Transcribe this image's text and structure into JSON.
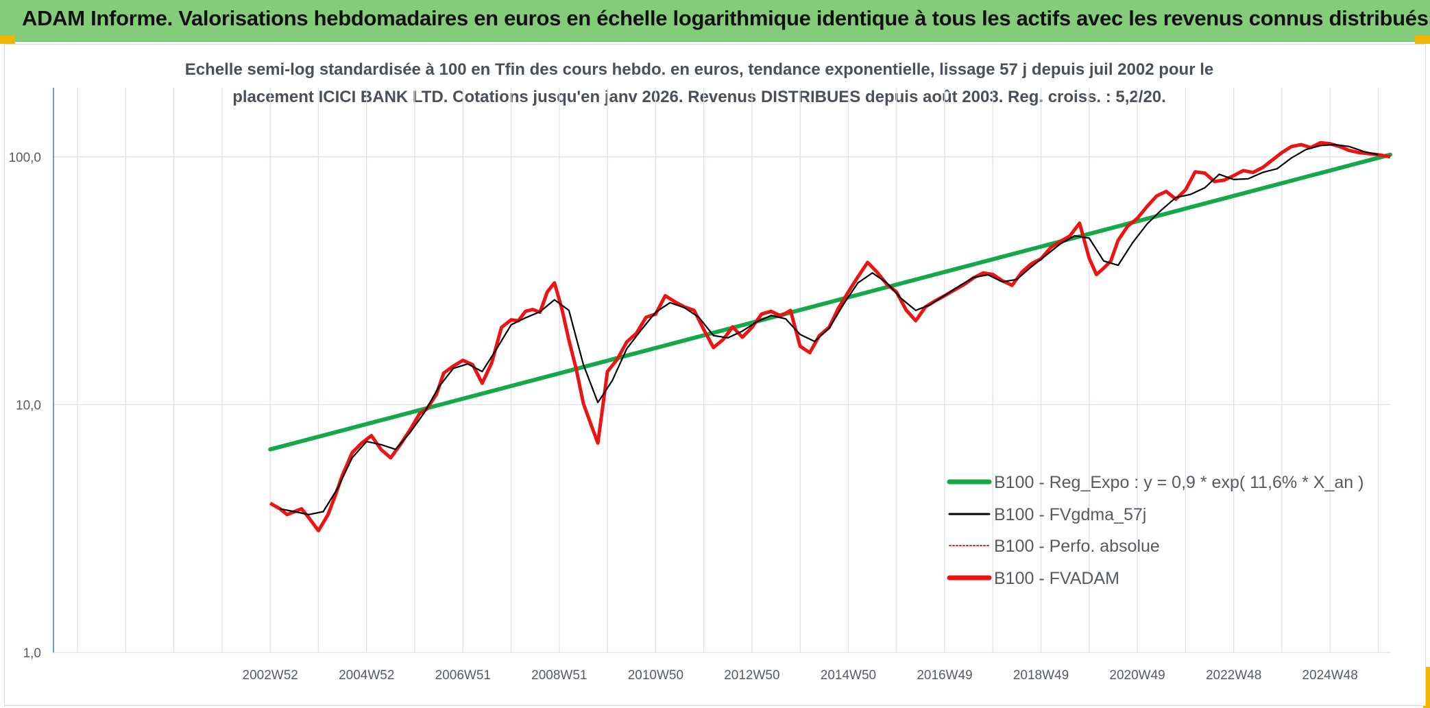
{
  "header": {
    "title": "ADAM Informe. Valorisations hebdomadaires en euros en échelle logarithmique identique à tous les actifs avec les revenus connus distribués"
  },
  "colors": {
    "header_bg": "#85cc7a",
    "regression": "#14a84a",
    "smoothed": "#000000",
    "perf_absolue": "#e02020",
    "fvadam": "#f01010",
    "grid": "#dde1e8",
    "corner_accent": "#f2b600"
  },
  "chart_data": {
    "type": "line",
    "title_line1": "Echelle semi-log standardisée à 100 en Tfin des cours hebdo. en euros, tendance exponentielle, lissage 57 j depuis juil 2002 pour le",
    "title_line2": "placement ICICI BANK LTD. Cotations jusqu'en janv 2026. Revenus DISTRIBUES depuis août 2003. Reg. croiss. : 5,2/20.",
    "y_scale": "log",
    "ylim": [
      1,
      190
    ],
    "xlim": [
      1998.5,
      2026.25
    ],
    "yticks": [
      {
        "value": 1,
        "label": "1,0"
      },
      {
        "value": 10,
        "label": "10,0"
      },
      {
        "value": 100,
        "label": "100,0"
      }
    ],
    "xticks": [
      {
        "value": 2003.0,
        "label": "2002W52"
      },
      {
        "value": 2005.0,
        "label": "2004W52"
      },
      {
        "value": 2007.0,
        "label": "2006W51"
      },
      {
        "value": 2009.0,
        "label": "2008W51"
      },
      {
        "value": 2011.0,
        "label": "2010W50"
      },
      {
        "value": 2013.0,
        "label": "2012W50"
      },
      {
        "value": 2015.0,
        "label": "2014W50"
      },
      {
        "value": 2017.0,
        "label": "2016W49"
      },
      {
        "value": 2019.0,
        "label": "2018W49"
      },
      {
        "value": 2021.0,
        "label": "2020W49"
      },
      {
        "value": 2023.0,
        "label": "2022W48"
      },
      {
        "value": 2025.0,
        "label": "2024W48"
      }
    ],
    "vertical_grid_years": [
      1999,
      2000,
      2001,
      2002,
      2003,
      2004,
      2005,
      2006,
      2007,
      2008,
      2009,
      2010,
      2011,
      2012,
      2013,
      2014,
      2015,
      2016,
      2017,
      2018,
      2019,
      2020,
      2021,
      2022,
      2023,
      2024,
      2025,
      2026
    ],
    "grid": true,
    "legend_position": "bottom-right",
    "legend": [
      {
        "key": "reg",
        "label": "B100 - Reg_Expo : y = 0,9 * exp( 11,6% *  X_an )",
        "style": "thick"
      },
      {
        "key": "smooth",
        "label": "B100 - FVgdma_57j",
        "style": "thin"
      },
      {
        "key": "perf",
        "label": "B100 - Perfo. absolue",
        "style": "dotted"
      },
      {
        "key": "fvadam",
        "label": "B100 - FVADAM",
        "style": "thick"
      }
    ],
    "series": [
      {
        "key": "reg",
        "name": "B100 - Reg_Expo : y = 0,9 * exp( 11,6% *  X_an )",
        "x": [
          2003.0,
          2026.25
        ],
        "values": [
          6.6,
          102
        ]
      },
      {
        "key": "fvadam",
        "name": "B100 - FVADAM",
        "x": [
          2003.0,
          2003.2,
          2003.35,
          2003.5,
          2003.65,
          2003.8,
          2004.0,
          2004.2,
          2004.35,
          2004.5,
          2004.7,
          2004.9,
          2005.1,
          2005.3,
          2005.5,
          2005.7,
          2005.9,
          2006.1,
          2006.25,
          2006.45,
          2006.6,
          2006.8,
          2007.0,
          2007.2,
          2007.4,
          2007.6,
          2007.8,
          2008.0,
          2008.15,
          2008.3,
          2008.45,
          2008.6,
          2008.75,
          2008.9,
          2009.05,
          2009.2,
          2009.35,
          2009.5,
          2009.65,
          2009.8,
          2010.0,
          2010.2,
          2010.4,
          2010.6,
          2010.8,
          2011.0,
          2011.2,
          2011.4,
          2011.6,
          2011.8,
          2012.0,
          2012.2,
          2012.4,
          2012.6,
          2012.8,
          2013.0,
          2013.2,
          2013.4,
          2013.6,
          2013.8,
          2014.0,
          2014.2,
          2014.4,
          2014.6,
          2014.8,
          2015.0,
          2015.2,
          2015.4,
          2015.6,
          2015.8,
          2016.0,
          2016.2,
          2016.4,
          2016.6,
          2016.8,
          2017.0,
          2017.2,
          2017.4,
          2017.6,
          2017.8,
          2018.0,
          2018.2,
          2018.4,
          2018.6,
          2018.8,
          2019.0,
          2019.2,
          2019.4,
          2019.6,
          2019.8,
          2020.0,
          2020.15,
          2020.3,
          2020.45,
          2020.6,
          2020.8,
          2021.0,
          2021.2,
          2021.4,
          2021.6,
          2021.8,
          2022.0,
          2022.2,
          2022.4,
          2022.6,
          2022.8,
          2023.0,
          2023.2,
          2023.4,
          2023.6,
          2023.8,
          2024.0,
          2024.2,
          2024.4,
          2024.6,
          2024.8,
          2025.0,
          2025.2,
          2025.4,
          2025.6,
          2025.8,
          2026.0,
          2026.25
        ],
        "values": [
          4.0,
          3.8,
          3.6,
          3.7,
          3.8,
          3.5,
          3.1,
          3.6,
          4.3,
          5.2,
          6.4,
          7.0,
          7.5,
          6.6,
          6.1,
          6.9,
          7.9,
          9.2,
          9.6,
          11.0,
          13.4,
          14.3,
          15.1,
          14.5,
          12.2,
          14.8,
          20.5,
          22.0,
          21.8,
          23.8,
          24.2,
          23.6,
          28.5,
          31.0,
          24.5,
          18.2,
          14.0,
          10.1,
          8.4,
          7.0,
          13.6,
          15.2,
          17.9,
          19.4,
          22.5,
          23.2,
          27.5,
          26.0,
          24.8,
          24.0,
          20.1,
          17.0,
          18.3,
          20.6,
          18.7,
          20.5,
          23.2,
          23.8,
          22.8,
          24.0,
          17.2,
          16.2,
          19.0,
          20.5,
          24.6,
          28.5,
          32.8,
          37.5,
          34.2,
          30.6,
          28.5,
          24.1,
          21.8,
          24.8,
          26.2,
          27.5,
          29.0,
          30.5,
          32.5,
          34.0,
          33.5,
          31.6,
          30.3,
          34.2,
          37.0,
          38.8,
          43.0,
          45.5,
          48.0,
          54.0,
          39.0,
          33.5,
          35.5,
          38.0,
          46.0,
          52.5,
          56.5,
          63.0,
          69.5,
          72.5,
          67.5,
          73.5,
          87.0,
          86.0,
          79.5,
          80.5,
          84.0,
          88.0,
          86.5,
          90.5,
          97.0,
          104.0,
          110.0,
          112.0,
          109.0,
          114.0,
          113.0,
          110.0,
          106.0,
          104.0,
          103.0,
          102.0,
          100.0
        ]
      },
      {
        "key": "smooth",
        "name": "B100 - FVgdma_57j",
        "x": [
          2003.2,
          2003.5,
          2003.8,
          2004.1,
          2004.4,
          2004.7,
          2005.0,
          2005.3,
          2005.6,
          2005.9,
          2006.2,
          2006.5,
          2006.8,
          2007.1,
          2007.4,
          2007.7,
          2008.0,
          2008.3,
          2008.6,
          2008.9,
          2009.2,
          2009.5,
          2009.8,
          2010.1,
          2010.4,
          2010.7,
          2011.0,
          2011.3,
          2011.6,
          2011.9,
          2012.2,
          2012.5,
          2012.8,
          2013.1,
          2013.4,
          2013.7,
          2014.0,
          2014.3,
          2014.6,
          2014.9,
          2015.2,
          2015.5,
          2015.8,
          2016.1,
          2016.4,
          2016.7,
          2017.0,
          2017.3,
          2017.6,
          2017.9,
          2018.2,
          2018.5,
          2018.8,
          2019.1,
          2019.4,
          2019.7,
          2020.0,
          2020.3,
          2020.6,
          2020.9,
          2021.2,
          2021.5,
          2021.8,
          2022.1,
          2022.4,
          2022.7,
          2023.0,
          2023.3,
          2023.6,
          2023.9,
          2024.2,
          2024.5,
          2024.8,
          2025.1,
          2025.4,
          2025.7,
          2026.0
        ],
        "values": [
          3.8,
          3.7,
          3.6,
          3.7,
          4.6,
          6.1,
          7.1,
          6.9,
          6.6,
          7.7,
          9.3,
          11.8,
          14.0,
          14.6,
          13.6,
          16.8,
          21.0,
          22.4,
          23.7,
          26.5,
          24.0,
          14.5,
          10.2,
          12.5,
          16.8,
          20.0,
          23.6,
          25.8,
          24.6,
          22.5,
          19.0,
          18.6,
          19.8,
          21.6,
          22.9,
          22.2,
          19.2,
          18.0,
          20.3,
          25.4,
          31.0,
          34.0,
          31.0,
          26.8,
          24.0,
          25.3,
          27.6,
          30.1,
          32.6,
          33.4,
          31.3,
          32.0,
          36.0,
          40.0,
          44.5,
          48.0,
          47.0,
          38.0,
          36.5,
          45.0,
          53.5,
          61.0,
          68.5,
          70.5,
          75.0,
          85.0,
          81.0,
          81.5,
          86.5,
          89.5,
          99.0,
          107.0,
          111.0,
          112.0,
          110.0,
          105.0,
          102.0
        ]
      }
    ]
  }
}
